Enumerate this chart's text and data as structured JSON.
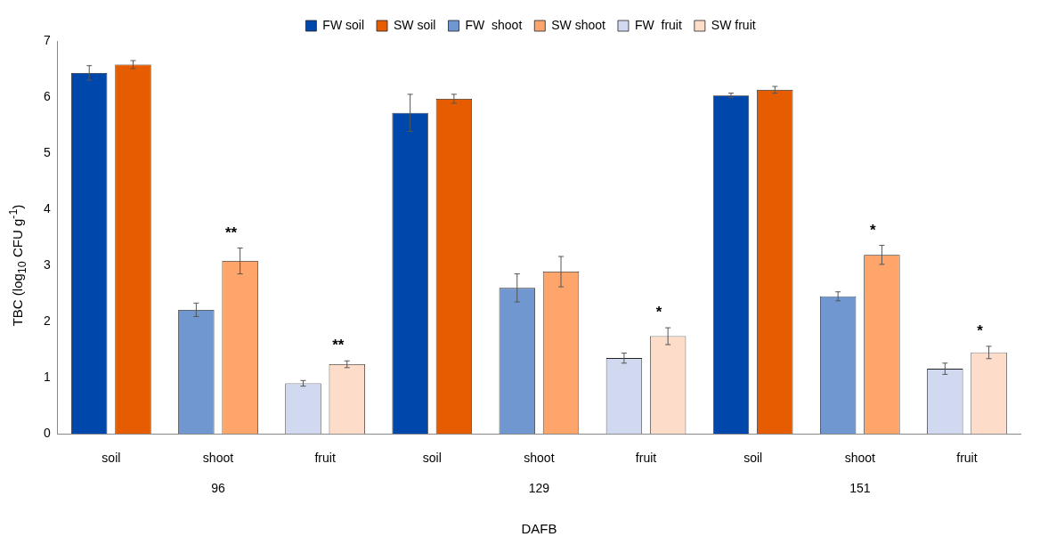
{
  "chart_data": {
    "type": "bar",
    "xlabel": "DAFB",
    "ylabel": "TBC (log$_{10}$ CFU g$^{-1}$)",
    "categories": [
      "soil",
      "shoot",
      "fruit",
      "soil",
      "shoot",
      "fruit",
      "soil",
      "shoot",
      "fruit"
    ],
    "annotations": [
      "96",
      "129",
      "151"
    ],
    "series": [
      {
        "name": "FW soil",
        "color": "#0047ab",
        "values": [
          6.43,
          null,
          null,
          5.72,
          null,
          null,
          6.03,
          null,
          null
        ],
        "errors": [
          0.13,
          null,
          null,
          0.33,
          null,
          null,
          0.04,
          null,
          null
        ]
      },
      {
        "name": "SW soil",
        "color": "#e65c00",
        "values": [
          6.58,
          null,
          null,
          5.97,
          null,
          null,
          6.13,
          null,
          null
        ],
        "errors": [
          0.07,
          null,
          null,
          0.08,
          null,
          null,
          0.06,
          null,
          null
        ]
      },
      {
        "name": "FW  shoot",
        "color": "#7097d0",
        "values": [
          null,
          2.21,
          null,
          null,
          2.6,
          null,
          null,
          2.45,
          null
        ],
        "errors": [
          null,
          0.12,
          null,
          null,
          0.25,
          null,
          null,
          0.08,
          null
        ]
      },
      {
        "name": "SW shoot",
        "color": "#fda56a",
        "values": [
          null,
          3.08,
          null,
          null,
          2.89,
          null,
          null,
          3.19,
          null
        ],
        "errors": [
          null,
          0.23,
          null,
          null,
          0.27,
          null,
          null,
          0.17,
          null
        ],
        "value_labels": [
          null,
          "**",
          null,
          null,
          null,
          null,
          null,
          "*",
          null
        ]
      },
      {
        "name": "FW  fruit",
        "color": "#d0d9f0",
        "values": [
          null,
          null,
          0.9,
          null,
          null,
          1.35,
          null,
          null,
          1.16
        ],
        "errors": [
          null,
          null,
          0.05,
          null,
          null,
          0.09,
          null,
          null,
          0.1
        ]
      },
      {
        "name": "SW fruit",
        "color": "#fddcca",
        "values": [
          null,
          null,
          1.24,
          null,
          null,
          1.74,
          null,
          null,
          1.45
        ],
        "errors": [
          null,
          null,
          0.06,
          null,
          null,
          0.15,
          null,
          null,
          0.11
        ],
        "value_labels": [
          null,
          null,
          "**",
          null,
          null,
          "*",
          null,
          null,
          "*"
        ]
      }
    ],
    "ylim": [
      0,
      7
    ],
    "yticks": [
      0,
      1,
      2,
      3,
      4,
      5,
      6,
      7
    ],
    "grid": false,
    "legend": "top"
  }
}
